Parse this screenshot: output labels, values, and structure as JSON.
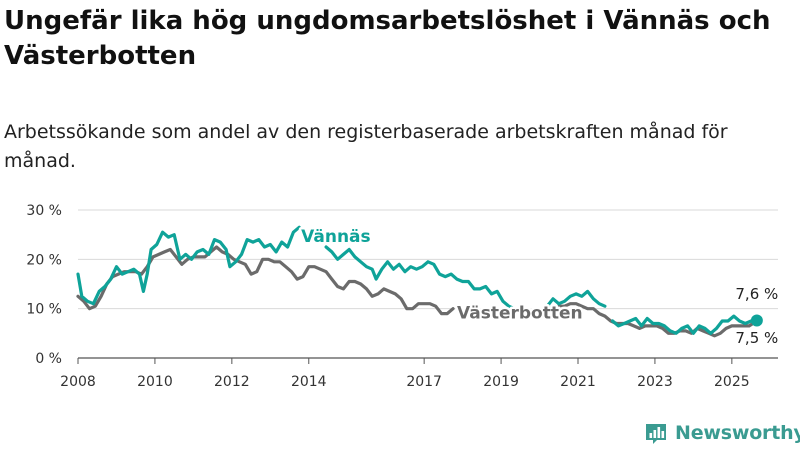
{
  "title": "Ungefär lika hög ungdomsarbetslöshet i Vännäs och Västerbotten",
  "subtitle": "Arbetssökande som andel av den registerbaserade arbetskraften månad för månad.",
  "brand": {
    "name": "Newsworthy",
    "logo_icon": "newsworthy-bar-chart-icon",
    "color": "#3a9b91"
  },
  "chart_data": {
    "type": "line",
    "xlim": [
      2008,
      2026.2
    ],
    "ylim": [
      0,
      30
    ],
    "y_ticks": [
      0,
      10,
      20,
      30
    ],
    "y_tick_labels": [
      "0 %",
      "10 %",
      "20 %",
      "30 %"
    ],
    "x_ticks": [
      2008,
      2010,
      2012,
      2014,
      2017,
      2019,
      2021,
      2023,
      2025
    ],
    "x_tick_labels": [
      "2008",
      "2010",
      "2012",
      "2014",
      "2017",
      "2019",
      "2021",
      "2023",
      "2025"
    ],
    "grid": true,
    "series": [
      {
        "name": "Vännäs",
        "color": "#0fa399",
        "end_label": "7,6 %",
        "points": [
          [
            2008.0,
            17
          ],
          [
            2008.1,
            12.5
          ],
          [
            2008.25,
            11.5
          ],
          [
            2008.4,
            11
          ],
          [
            2008.55,
            13.5
          ],
          [
            2008.7,
            14.5
          ],
          [
            2008.85,
            16
          ],
          [
            2009.0,
            18.5
          ],
          [
            2009.15,
            17
          ],
          [
            2009.3,
            17.5
          ],
          [
            2009.45,
            18
          ],
          [
            2009.6,
            17
          ],
          [
            2009.7,
            13.5
          ],
          [
            2009.8,
            17
          ],
          [
            2009.9,
            22
          ],
          [
            2010.05,
            23
          ],
          [
            2010.2,
            25.5
          ],
          [
            2010.35,
            24.5
          ],
          [
            2010.5,
            25
          ],
          [
            2010.65,
            20
          ],
          [
            2010.8,
            21
          ],
          [
            2010.95,
            20
          ],
          [
            2011.1,
            21.5
          ],
          [
            2011.25,
            22
          ],
          [
            2011.4,
            21
          ],
          [
            2011.55,
            24
          ],
          [
            2011.7,
            23.5
          ],
          [
            2011.85,
            22
          ],
          [
            2011.95,
            18.5
          ],
          [
            2012.1,
            19.5
          ],
          [
            2012.25,
            21
          ],
          [
            2012.4,
            24
          ],
          [
            2012.55,
            23.5
          ],
          [
            2012.7,
            24
          ],
          [
            2012.85,
            22.5
          ],
          [
            2013.0,
            23
          ],
          [
            2013.15,
            21.5
          ],
          [
            2013.3,
            23.5
          ],
          [
            2013.45,
            22.5
          ],
          [
            2013.6,
            25.5
          ],
          [
            2013.75,
            26.5
          ]
        ],
        "points_b": [
          [
            2014.45,
            22.5
          ],
          [
            2014.6,
            21.5
          ],
          [
            2014.75,
            20
          ],
          [
            2014.9,
            21
          ],
          [
            2015.05,
            22
          ],
          [
            2015.2,
            20.5
          ],
          [
            2015.35,
            19.5
          ],
          [
            2015.5,
            18.5
          ],
          [
            2015.65,
            18
          ],
          [
            2015.75,
            16
          ],
          [
            2015.9,
            18
          ],
          [
            2016.05,
            19.5
          ],
          [
            2016.2,
            18
          ],
          [
            2016.35,
            19
          ],
          [
            2016.5,
            17.5
          ],
          [
            2016.65,
            18.5
          ],
          [
            2016.8,
            18
          ],
          [
            2016.95,
            18.5
          ],
          [
            2017.1,
            19.5
          ],
          [
            2017.25,
            19
          ],
          [
            2017.4,
            17
          ],
          [
            2017.55,
            16.5
          ],
          [
            2017.7,
            17
          ],
          [
            2017.85,
            16
          ],
          [
            2018.0,
            15.5
          ],
          [
            2018.15,
            15.5
          ],
          [
            2018.3,
            14
          ],
          [
            2018.45,
            14
          ],
          [
            2018.6,
            14.5
          ],
          [
            2018.75,
            13
          ],
          [
            2018.9,
            13.5
          ],
          [
            2019.05,
            11.5
          ],
          [
            2019.2,
            10.5
          ],
          [
            2019.35,
            10
          ]
        ],
        "points_c": [
          [
            2020.2,
            10.5
          ],
          [
            2020.35,
            12
          ],
          [
            2020.5,
            11
          ],
          [
            2020.65,
            11.5
          ],
          [
            2020.8,
            12.5
          ],
          [
            2020.95,
            13
          ],
          [
            2021.1,
            12.5
          ],
          [
            2021.25,
            13.5
          ],
          [
            2021.4,
            12
          ],
          [
            2021.55,
            11
          ],
          [
            2021.7,
            10.5
          ]
        ],
        "points_d": [
          [
            2021.9,
            7.5
          ],
          [
            2022.05,
            6.5
          ],
          [
            2022.2,
            7
          ],
          [
            2022.35,
            7.5
          ],
          [
            2022.5,
            8
          ],
          [
            2022.65,
            6.5
          ],
          [
            2022.8,
            8
          ],
          [
            2022.95,
            7
          ],
          [
            2023.1,
            7
          ],
          [
            2023.25,
            6.5
          ],
          [
            2023.4,
            5.5
          ],
          [
            2023.55,
            5
          ],
          [
            2023.7,
            6
          ],
          [
            2023.85,
            6.5
          ],
          [
            2024.0,
            5
          ],
          [
            2024.15,
            6.5
          ],
          [
            2024.3,
            6
          ],
          [
            2024.45,
            5
          ],
          [
            2024.6,
            6
          ],
          [
            2024.75,
            7.5
          ],
          [
            2024.9,
            7.5
          ],
          [
            2025.05,
            8.5
          ],
          [
            2025.2,
            7.5
          ],
          [
            2025.35,
            7
          ],
          [
            2025.5,
            7.5
          ],
          [
            2025.65,
            7.6
          ]
        ]
      },
      {
        "name": "Västerbotten",
        "color": "#6b6b6b",
        "end_label": "7,5 %",
        "points": [
          [
            2008.0,
            12.5
          ],
          [
            2008.15,
            11.5
          ],
          [
            2008.3,
            10
          ],
          [
            2008.45,
            10.5
          ],
          [
            2008.6,
            12.5
          ],
          [
            2008.75,
            15
          ],
          [
            2008.9,
            16.5
          ],
          [
            2009.05,
            17
          ],
          [
            2009.2,
            17.5
          ],
          [
            2009.35,
            17.5
          ],
          [
            2009.5,
            17.5
          ],
          [
            2009.65,
            17
          ],
          [
            2009.8,
            18.5
          ],
          [
            2009.95,
            20.5
          ],
          [
            2010.1,
            21
          ],
          [
            2010.25,
            21.5
          ],
          [
            2010.4,
            22
          ],
          [
            2010.55,
            20.5
          ],
          [
            2010.7,
            19
          ],
          [
            2010.85,
            20
          ],
          [
            2011.0,
            20.5
          ],
          [
            2011.15,
            20.5
          ],
          [
            2011.3,
            20.5
          ],
          [
            2011.45,
            21.5
          ],
          [
            2011.6,
            22.5
          ],
          [
            2011.75,
            21.5
          ],
          [
            2011.9,
            21
          ],
          [
            2012.05,
            20
          ],
          [
            2012.2,
            19.5
          ],
          [
            2012.35,
            19
          ],
          [
            2012.5,
            17
          ],
          [
            2012.65,
            17.5
          ],
          [
            2012.8,
            20
          ],
          [
            2012.95,
            20
          ],
          [
            2013.1,
            19.5
          ],
          [
            2013.25,
            19.5
          ],
          [
            2013.4,
            18.5
          ],
          [
            2013.55,
            17.5
          ],
          [
            2013.7,
            16
          ],
          [
            2013.85,
            16.5
          ],
          [
            2014.0,
            18.5
          ],
          [
            2014.15,
            18.5
          ],
          [
            2014.3,
            18
          ],
          [
            2014.45,
            17.5
          ],
          [
            2014.6,
            16
          ],
          [
            2014.75,
            14.5
          ],
          [
            2014.9,
            14
          ],
          [
            2015.05,
            15.5
          ],
          [
            2015.2,
            15.5
          ],
          [
            2015.35,
            15
          ],
          [
            2015.5,
            14
          ],
          [
            2015.65,
            12.5
          ],
          [
            2015.8,
            13
          ],
          [
            2015.95,
            14
          ],
          [
            2016.1,
            13.5
          ],
          [
            2016.25,
            13
          ],
          [
            2016.4,
            12
          ],
          [
            2016.55,
            10
          ],
          [
            2016.7,
            10
          ],
          [
            2016.85,
            11
          ],
          [
            2017.0,
            11
          ],
          [
            2017.15,
            11
          ],
          [
            2017.3,
            10.5
          ],
          [
            2017.45,
            9
          ],
          [
            2017.6,
            9
          ],
          [
            2017.75,
            10
          ]
        ],
        "points_b": [
          [
            2020.2,
            10
          ],
          [
            2020.35,
            10.5
          ],
          [
            2020.5,
            10.5
          ],
          [
            2020.65,
            10.5
          ],
          [
            2020.8,
            11
          ],
          [
            2020.95,
            11
          ],
          [
            2021.1,
            10.5
          ],
          [
            2021.25,
            10
          ],
          [
            2021.4,
            10
          ],
          [
            2021.55,
            9
          ],
          [
            2021.7,
            8.5
          ],
          [
            2021.85,
            7.5
          ],
          [
            2022.0,
            7
          ],
          [
            2022.15,
            7
          ],
          [
            2022.3,
            7
          ],
          [
            2022.45,
            6.5
          ],
          [
            2022.6,
            6
          ],
          [
            2022.75,
            6.5
          ],
          [
            2022.9,
            6.5
          ],
          [
            2023.05,
            6.5
          ],
          [
            2023.2,
            6
          ],
          [
            2023.35,
            5
          ],
          [
            2023.5,
            5
          ],
          [
            2023.65,
            5.5
          ],
          [
            2023.8,
            5.5
          ],
          [
            2023.95,
            5
          ],
          [
            2024.1,
            6
          ],
          [
            2024.25,
            5.5
          ],
          [
            2024.4,
            5
          ],
          [
            2024.55,
            4.5
          ],
          [
            2024.7,
            5
          ],
          [
            2024.85,
            6
          ],
          [
            2025.0,
            6.5
          ],
          [
            2025.15,
            6.5
          ],
          [
            2025.3,
            6.5
          ],
          [
            2025.45,
            6.5
          ],
          [
            2025.65,
            7.5
          ]
        ]
      }
    ],
    "annotations": [
      {
        "text": "Vännäs",
        "series": "Vännäs",
        "color": "#0fa399"
      },
      {
        "text": "Västerbotten",
        "series": "Västerbotten",
        "color": "#6b6b6b"
      }
    ]
  }
}
